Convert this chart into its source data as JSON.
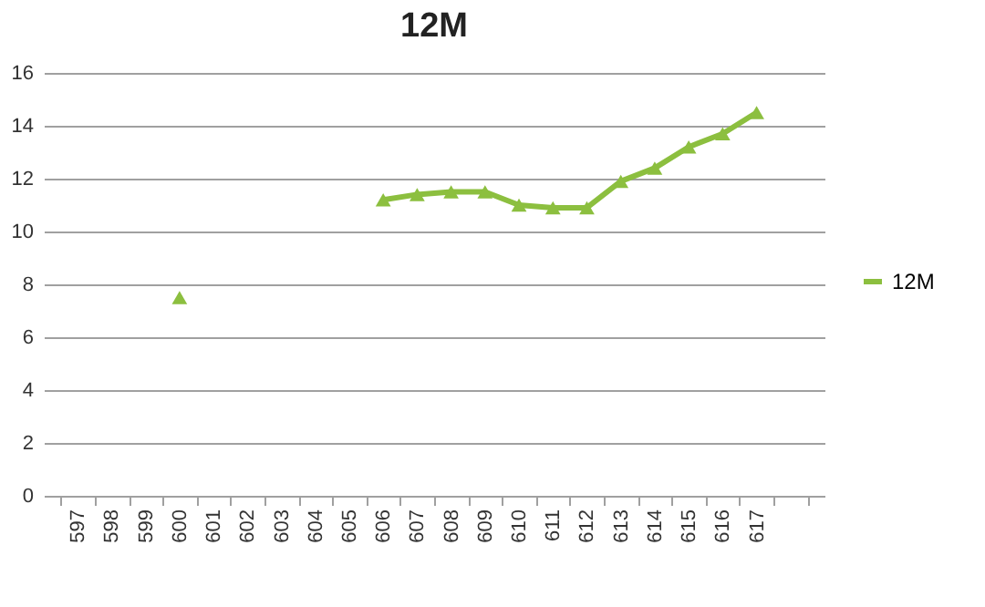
{
  "chart_data": {
    "type": "line",
    "title": "12M",
    "categories": [
      "597",
      "598",
      "599",
      "600",
      "601",
      "602",
      "603",
      "604",
      "605",
      "606",
      "607",
      "608",
      "609",
      "610",
      "611",
      "612",
      "613",
      "614",
      "615",
      "616",
      "617",
      null
    ],
    "series": [
      {
        "name": "12M",
        "color": "#8cbf3f",
        "values": [
          null,
          null,
          null,
          7.5,
          null,
          null,
          null,
          null,
          null,
          11.2,
          11.4,
          11.5,
          11.5,
          11.0,
          10.9,
          10.9,
          11.9,
          12.4,
          13.2,
          13.7,
          14.5,
          null
        ]
      }
    ],
    "ylim": [
      0,
      16
    ],
    "yticks": [
      0,
      2,
      4,
      6,
      8,
      10,
      12,
      14,
      16
    ],
    "grid": "y",
    "legend": "right",
    "marker": "triangle",
    "line_style": "solid"
  }
}
